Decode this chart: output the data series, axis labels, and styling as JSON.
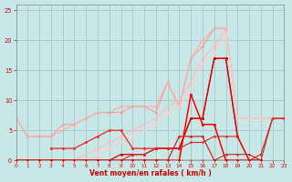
{
  "bg_color": "#c8e8e8",
  "grid_color": "#aacccc",
  "xlabel": "Vent moyen/en rafales ( km/h )",
  "xlim": [
    0,
    23
  ],
  "ylim": [
    0,
    26
  ],
  "yticks": [
    0,
    5,
    10,
    15,
    20,
    25
  ],
  "xticks": [
    0,
    1,
    2,
    3,
    4,
    5,
    6,
    7,
    8,
    9,
    10,
    11,
    12,
    13,
    14,
    15,
    16,
    17,
    18,
    19,
    20,
    21,
    22,
    23
  ],
  "series": [
    {
      "name": "light_pink_1",
      "x": [
        0,
        1,
        2,
        3,
        4,
        5,
        6,
        7,
        8,
        9,
        10,
        11,
        12,
        13,
        14,
        15,
        16,
        17,
        18,
        19,
        20,
        21
      ],
      "y": [
        7,
        4,
        4,
        4,
        6,
        6,
        7,
        8,
        8,
        8,
        9,
        9,
        8,
        13,
        9,
        17,
        19,
        22,
        22,
        7,
        7,
        7
      ],
      "color": "#ff9999",
      "lw": 0.8,
      "ms": 2.0,
      "zorder": 2
    },
    {
      "name": "light_pink_2",
      "x": [
        0,
        1,
        2,
        3,
        4,
        5,
        6,
        7,
        8,
        9,
        10,
        11,
        12,
        13,
        14,
        15,
        16,
        17,
        18,
        19,
        20,
        21,
        22,
        23
      ],
      "y": [
        7,
        4,
        4,
        4,
        5,
        6,
        7,
        8,
        8,
        9,
        9,
        9,
        9,
        13,
        9,
        17,
        20,
        22,
        22,
        7,
        7,
        7,
        7,
        7
      ],
      "color": "#ffaaaa",
      "lw": 0.8,
      "ms": 2.0,
      "zorder": 2
    },
    {
      "name": "pink_ascending_1",
      "x": [
        0,
        1,
        2,
        3,
        4,
        5,
        6,
        7,
        8,
        9,
        10,
        11,
        12,
        13,
        14,
        15,
        16,
        17,
        18,
        19,
        20,
        21,
        22,
        23
      ],
      "y": [
        0,
        0,
        0,
        0,
        0,
        0,
        1,
        2,
        3,
        4,
        5,
        6,
        7,
        9,
        10,
        13,
        17,
        19,
        22,
        7,
        7,
        7,
        7,
        7
      ],
      "color": "#ffbbbb",
      "lw": 0.8,
      "ms": 2.0,
      "zorder": 2
    },
    {
      "name": "pink_ascending_2",
      "x": [
        0,
        1,
        2,
        3,
        4,
        5,
        6,
        7,
        8,
        9,
        10,
        11,
        12,
        13,
        14,
        15,
        16,
        17,
        18,
        19,
        20,
        21,
        22,
        23
      ],
      "y": [
        0,
        0,
        0,
        0,
        0,
        0,
        0,
        1,
        2,
        3,
        4,
        5,
        6,
        8,
        9,
        12,
        16,
        18,
        21,
        7,
        7,
        7,
        7,
        7
      ],
      "color": "#ffcccc",
      "lw": 0.8,
      "ms": 2.0,
      "zorder": 2
    },
    {
      "name": "med_red_jagged",
      "x": [
        3,
        4,
        5,
        6,
        7,
        8,
        9,
        10,
        11,
        12,
        13,
        14,
        15,
        16,
        17,
        18,
        19,
        20,
        21
      ],
      "y": [
        2,
        2,
        2,
        3,
        4,
        5,
        5,
        2,
        2,
        2,
        2,
        2,
        7,
        7,
        17,
        17,
        4,
        0,
        0
      ],
      "color": "#ee3333",
      "lw": 1.0,
      "ms": 2.2,
      "zorder": 3
    },
    {
      "name": "dark_red_low",
      "x": [
        0,
        1,
        2,
        3,
        4,
        5,
        6,
        7,
        8,
        9,
        10,
        11,
        12,
        13,
        14,
        15,
        16,
        17,
        18,
        19,
        20,
        21
      ],
      "y": [
        0,
        0,
        0,
        0,
        0,
        0,
        0,
        0,
        0,
        1,
        1,
        1,
        2,
        2,
        2,
        7,
        7,
        17,
        17,
        4,
        0,
        0
      ],
      "color": "#cc0000",
      "lw": 0.9,
      "ms": 2.0,
      "zorder": 3
    },
    {
      "name": "bright_red_spike",
      "x": [
        0,
        1,
        2,
        3,
        4,
        5,
        6,
        7,
        8,
        9,
        10,
        11,
        12,
        13,
        14,
        15,
        16,
        17,
        18,
        19,
        20,
        21
      ],
      "y": [
        0,
        0,
        0,
        0,
        0,
        0,
        0,
        0,
        0,
        0,
        0,
        0,
        0,
        0,
        0,
        11,
        6,
        6,
        0,
        0,
        0,
        0
      ],
      "color": "#ff0000",
      "lw": 1.1,
      "ms": 2.2,
      "zorder": 4
    },
    {
      "name": "dark_red_flat",
      "x": [
        0,
        1,
        2,
        3,
        4,
        5,
        6,
        7,
        8,
        9,
        10,
        11,
        12,
        13,
        14,
        15,
        16,
        17,
        18,
        19,
        20,
        21,
        22,
        23
      ],
      "y": [
        0,
        0,
        0,
        0,
        0,
        0,
        0,
        0,
        0,
        0,
        1,
        1,
        2,
        2,
        2,
        3,
        3,
        4,
        4,
        4,
        0,
        1,
        7,
        7
      ],
      "color": "#dd2222",
      "lw": 0.8,
      "ms": 1.8,
      "zorder": 3
    },
    {
      "name": "dark_red_very_low",
      "x": [
        0,
        1,
        2,
        3,
        4,
        5,
        6,
        7,
        8,
        9,
        10,
        11,
        12,
        13,
        14,
        15,
        16,
        17,
        18,
        19,
        20,
        21,
        22,
        23
      ],
      "y": [
        0,
        0,
        0,
        0,
        0,
        0,
        0,
        0,
        0,
        0,
        0,
        0,
        0,
        0,
        0,
        0,
        0,
        0,
        1,
        1,
        1,
        0,
        7,
        7
      ],
      "color": "#bb1111",
      "lw": 0.7,
      "ms": 1.5,
      "zorder": 2
    },
    {
      "name": "dark_red_medium2",
      "x": [
        0,
        1,
        2,
        3,
        4,
        5,
        6,
        7,
        8,
        9,
        10,
        11,
        12,
        13,
        14,
        15,
        16,
        17,
        18,
        19,
        20,
        21
      ],
      "y": [
        0,
        0,
        0,
        0,
        0,
        0,
        0,
        0,
        0,
        0,
        0,
        0,
        0,
        0,
        4,
        4,
        4,
        0,
        0,
        0,
        0,
        0
      ],
      "color": "#cc2222",
      "lw": 0.9,
      "ms": 2.0,
      "zorder": 3
    }
  ]
}
